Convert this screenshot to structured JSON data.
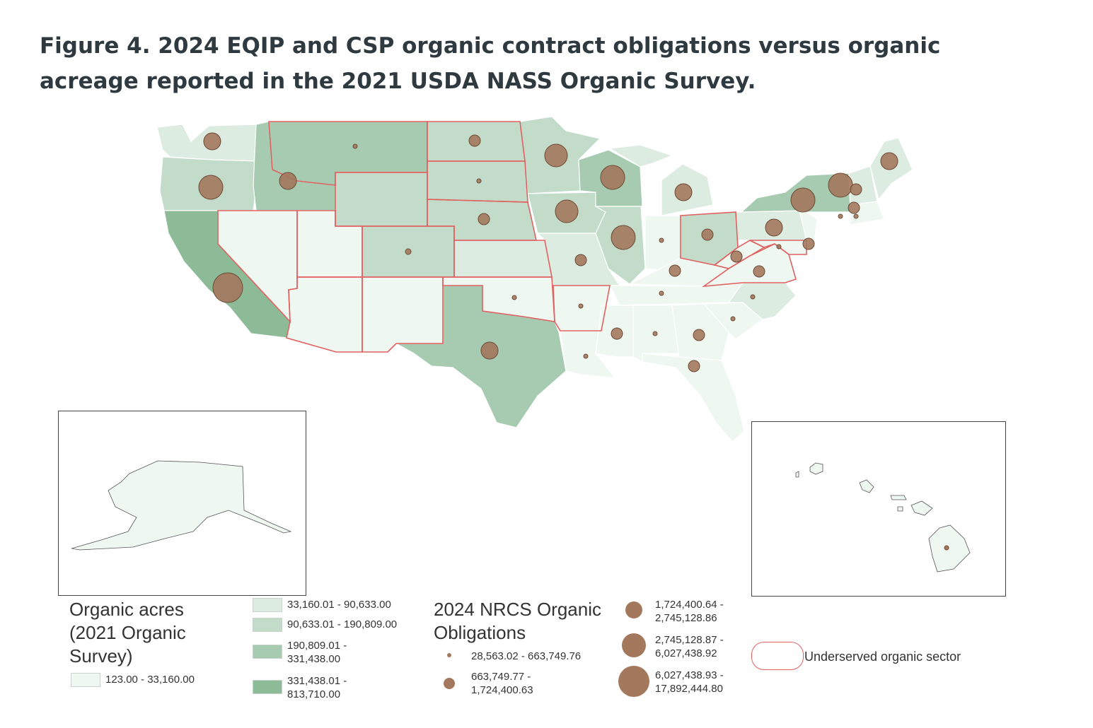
{
  "title": {
    "line1": "Figure 4. 2024 EQIP and CSP organic contract obligations versus organic",
    "line2": "acreage reported in the 2021 USDA NASS Organic Survey."
  },
  "colors": {
    "class1": "#eff7f1",
    "class2": "#dcece1",
    "class3": "#c2dcc9",
    "class4": "#a6cbb0",
    "class5": "#8dbb98",
    "bubble": "#8a6248",
    "bubble_fill": "#a3785d",
    "underserved_outline": "#e06060"
  },
  "legend_acres": {
    "title_line1": "Organic acres",
    "title_line2": "(2021 Organic",
    "title_line3": "Survey)",
    "classes": [
      {
        "label_line1": "123.00 - 33,160.00",
        "label_line2": ""
      },
      {
        "label_line1": "33,160.01 - 90,633.00",
        "label_line2": ""
      },
      {
        "label_line1": "90,633.01 - 190,809.00",
        "label_line2": ""
      },
      {
        "label_line1": "190,809.01 -",
        "label_line2": "331,438.00"
      },
      {
        "label_line1": "331,438.01 -",
        "label_line2": "813,710.00"
      }
    ]
  },
  "legend_obligations": {
    "title_line1": "2024 NRCS Organic",
    "title_line2": "Obligations",
    "classes": [
      {
        "label_line1": "28,563.02 - 663,749.76",
        "label_line2": ""
      },
      {
        "label_line1": "663,749.77 -",
        "label_line2": "1,724,400.63"
      },
      {
        "label_line1": "1,724,400.64 -",
        "label_line2": "2,745,128.86"
      },
      {
        "label_line1": "2,745,128.87 -",
        "label_line2": "6,027,438.92"
      },
      {
        "label_line1": "6,027,438.93 -",
        "label_line2": "17,892,444.80"
      }
    ]
  },
  "legend_underserved": {
    "label": "Underserved organic sector"
  }
}
